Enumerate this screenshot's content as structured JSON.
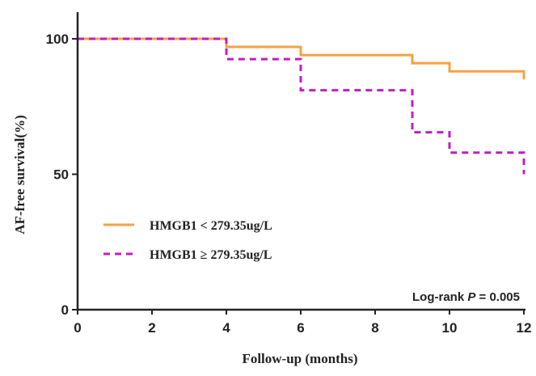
{
  "chart_data": {
    "type": "line",
    "step": true,
    "xlabel": "Follow-up (months)",
    "ylabel": "AF-free survival(%)",
    "xlim": [
      0,
      12
    ],
    "ylim": [
      0,
      100
    ],
    "x_ticks": [
      0,
      2,
      4,
      6,
      8,
      10,
      12
    ],
    "y_ticks": [
      0,
      50,
      100
    ],
    "grid": false,
    "legend_position": "lower-left",
    "annotation": {
      "prefix": "Log-rank ",
      "italic": "P",
      "suffix": " = 0.005"
    },
    "series": [
      {
        "name": "HMGB1 < 279.35ug/L",
        "color": "#f5a142",
        "style": "solid",
        "x": [
          0,
          4,
          6,
          9,
          10,
          12
        ],
        "y": [
          100,
          97,
          94,
          91,
          88,
          85
        ]
      },
      {
        "name": "HMGB1 ≥ 279.35ug/L",
        "color": "#c21bc7",
        "style": "dashed",
        "x": [
          0,
          4,
          6,
          9,
          10,
          12
        ],
        "y": [
          100,
          92.5,
          81,
          65.5,
          58,
          50
        ]
      }
    ]
  }
}
